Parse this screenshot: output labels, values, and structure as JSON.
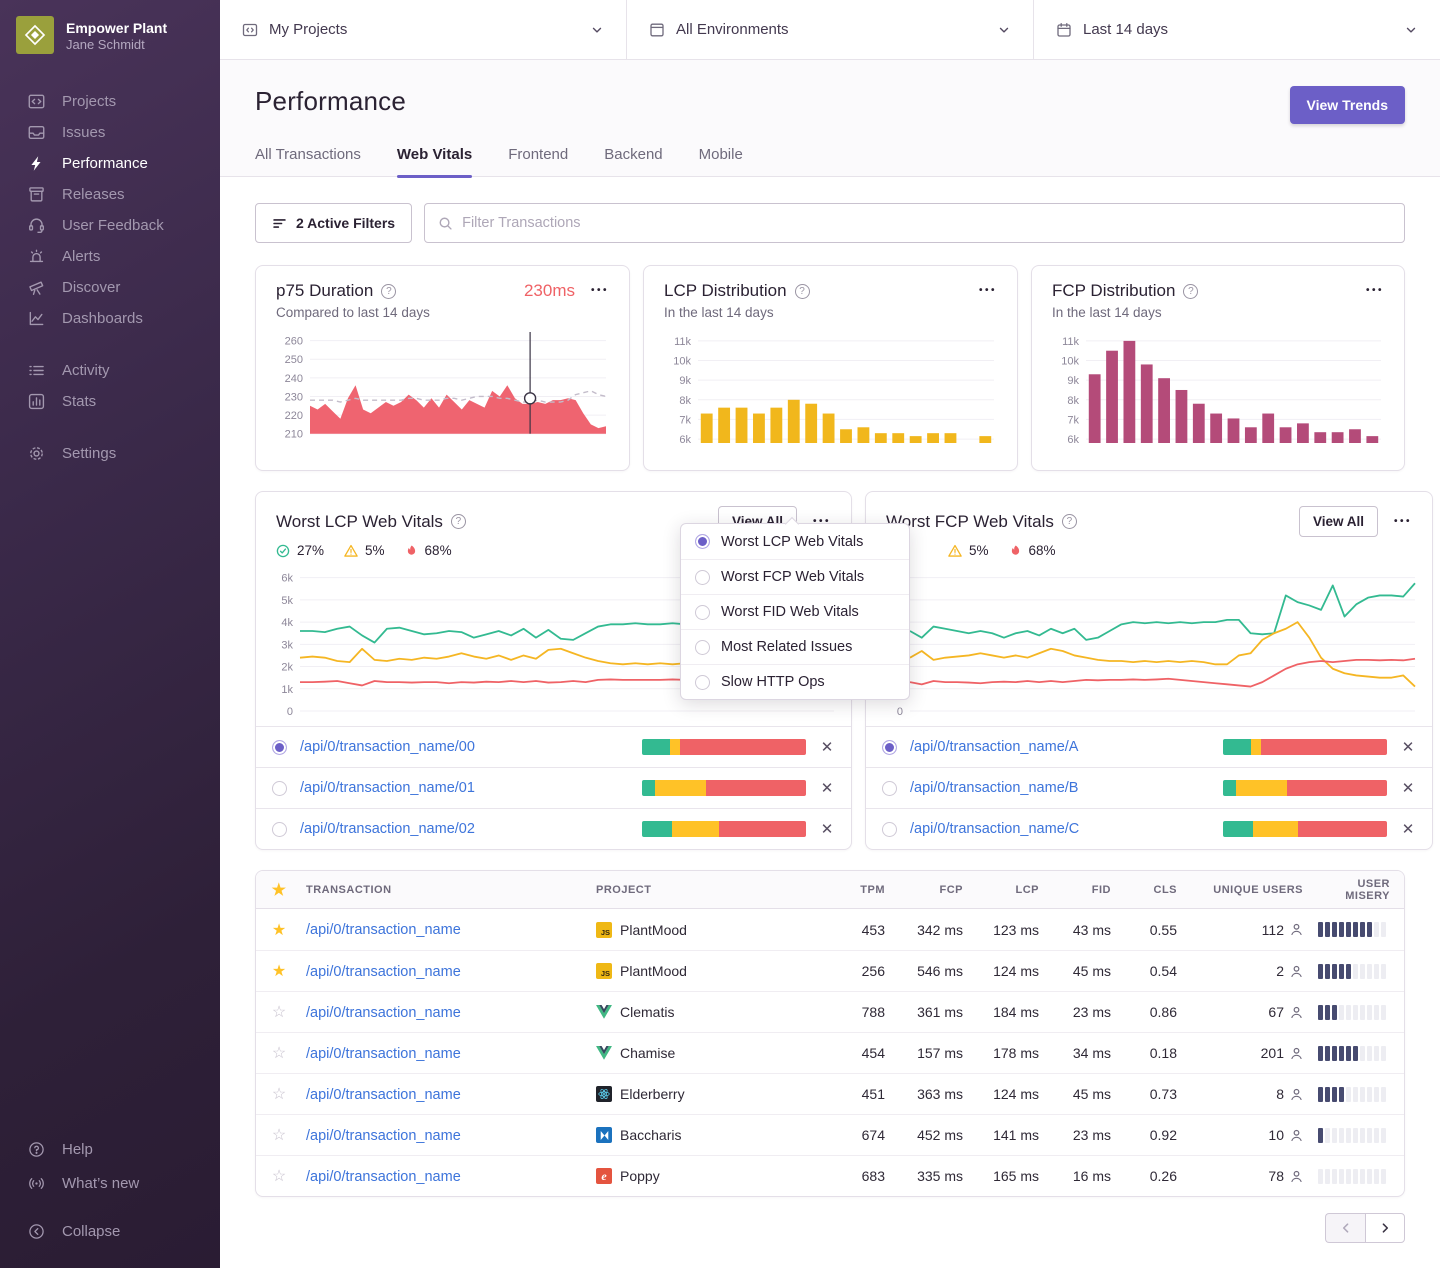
{
  "colors": {
    "accent": "#6C5FC7",
    "red": "#EF6266",
    "green": "#33BA91",
    "yellow": "#F5B623",
    "lcp_bar": "#F1B71C",
    "fcp_bar": "#B44B79",
    "link": "#3D74DB",
    "misery": "#474B70"
  },
  "sidebar": {
    "org": "Empower Plant",
    "user": "Jane Schmidt",
    "items": [
      {
        "label": "Projects"
      },
      {
        "label": "Issues"
      },
      {
        "label": "Performance",
        "active": true
      },
      {
        "label": "Releases"
      },
      {
        "label": "User Feedback"
      },
      {
        "label": "Alerts"
      },
      {
        "label": "Discover"
      },
      {
        "label": "Dashboards"
      }
    ],
    "items_secondary": [
      {
        "label": "Activity"
      },
      {
        "label": "Stats"
      }
    ],
    "items_tertiary": [
      {
        "label": "Settings"
      }
    ],
    "footer_items": [
      {
        "label": "Help"
      },
      {
        "label": "What’s new"
      }
    ],
    "collapse_label": "Collapse"
  },
  "topbar": {
    "projects": "My Projects",
    "environments": "All Environments",
    "daterange": "Last 14 days"
  },
  "page": {
    "title": "Performance",
    "view_trends": "View Trends"
  },
  "tabs": [
    {
      "label": "All Transactions"
    },
    {
      "label": "Web Vitals",
      "active": true
    },
    {
      "label": "Frontend"
    },
    {
      "label": "Backend"
    },
    {
      "label": "Mobile"
    }
  ],
  "filter_bar": {
    "active_filters": "2 Active Filters",
    "placeholder": "Filter Transactions"
  },
  "cards": {
    "p75": {
      "title": "p75 Duration",
      "value": "230ms",
      "subtitle": "Compared to last 14 days"
    },
    "lcp": {
      "title": "LCP Distribution",
      "subtitle": "In the last 14 days"
    },
    "fcp": {
      "title": "FCP Distribution",
      "subtitle": "In the last 14 days"
    }
  },
  "menu": {
    "items": [
      "Worst LCP Web Vitals",
      "Worst FCP Web Vitals",
      "Worst FID Web Vitals",
      "Most Related Issues",
      "Slow HTTP Ops"
    ],
    "selected_index": 0
  },
  "vitals": {
    "left": {
      "title": "Worst LCP Web Vitals",
      "view_all": "View All",
      "good": "27%",
      "meh": "5%",
      "poor": "68%",
      "transactions": [
        {
          "name": "/api/0/transaction_name/00",
          "selected": true,
          "segments": [
            17,
            6,
            77
          ]
        },
        {
          "name": "/api/0/transaction_name/01",
          "selected": false,
          "segments": [
            8,
            31,
            61
          ]
        },
        {
          "name": "/api/0/transaction_name/02",
          "selected": false,
          "segments": [
            18,
            29,
            53
          ]
        }
      ]
    },
    "right": {
      "title": "Worst FCP Web Vitals",
      "view_all": "View All",
      "meh": "5%",
      "poor": "68%",
      "transactions": [
        {
          "name": "/api/0/transaction_name/A",
          "selected": true,
          "segments": [
            17,
            6,
            77
          ]
        },
        {
          "name": "/api/0/transaction_name/B",
          "selected": false,
          "segments": [
            8,
            31,
            61
          ]
        },
        {
          "name": "/api/0/transaction_name/C",
          "selected": false,
          "segments": [
            18,
            28,
            54
          ]
        }
      ]
    }
  },
  "table": {
    "columns": [
      "TRANSACTION",
      "PROJECT",
      "TPM",
      "FCP",
      "LCP",
      "FID",
      "CLS",
      "UNIQUE USERS",
      "USER MISERY"
    ],
    "misery_total": 10,
    "rows": [
      {
        "starred": true,
        "transaction": "/api/0/transaction_name",
        "project": "PlantMood",
        "platform": "javascript",
        "tpm": "453",
        "fcp": "342 ms",
        "lcp": "123 ms",
        "fid": "43 ms",
        "cls": "0.55",
        "users": "112",
        "misery": 8
      },
      {
        "starred": true,
        "transaction": "/api/0/transaction_name",
        "project": "PlantMood",
        "platform": "javascript",
        "tpm": "256",
        "fcp": "546 ms",
        "lcp": "124 ms",
        "fid": "45 ms",
        "cls": "0.54",
        "users": "2",
        "misery": 5
      },
      {
        "starred": false,
        "transaction": "/api/0/transaction_name",
        "project": "Clematis",
        "platform": "vue",
        "tpm": "788",
        "fcp": "361 ms",
        "lcp": "184 ms",
        "fid": "23 ms",
        "cls": "0.86",
        "users": "67",
        "misery": 3
      },
      {
        "starred": false,
        "transaction": "/api/0/transaction_name",
        "project": "Chamise",
        "platform": "vue",
        "tpm": "454",
        "fcp": "157 ms",
        "lcp": "178 ms",
        "fid": "34 ms",
        "cls": "0.18",
        "users": "201",
        "misery": 6
      },
      {
        "starred": false,
        "transaction": "/api/0/transaction_name",
        "project": "Elderberry",
        "platform": "react",
        "tpm": "451",
        "fcp": "363 ms",
        "lcp": "124 ms",
        "fid": "45 ms",
        "cls": "0.73",
        "users": "8",
        "misery": 4
      },
      {
        "starred": false,
        "transaction": "/api/0/transaction_name",
        "project": "Baccharis",
        "platform": "baccharis",
        "tpm": "674",
        "fcp": "452 ms",
        "lcp": "141 ms",
        "fid": "23 ms",
        "cls": "0.92",
        "users": "10",
        "misery": 1
      },
      {
        "starred": false,
        "transaction": "/api/0/transaction_name",
        "project": "Poppy",
        "platform": "ember",
        "tpm": "683",
        "fcp": "335 ms",
        "lcp": "165 ms",
        "fid": "16 ms",
        "cls": "0.26",
        "users": "78",
        "misery": 0
      }
    ]
  },
  "chart_data": [
    {
      "id": "p75",
      "type": "area",
      "title": "p75 Duration",
      "unit": "ms",
      "ylim": [
        205,
        263
      ],
      "yticks": [
        "260",
        "250",
        "240",
        "230",
        "220",
        "210"
      ],
      "ytick_values": [
        260,
        250,
        240,
        230,
        220,
        210
      ],
      "baseline": 210,
      "marker_index": 29,
      "marker_value": 229,
      "values": [
        225,
        223,
        226,
        222,
        218,
        229,
        236,
        223,
        221,
        224,
        227,
        225,
        227,
        231,
        228,
        224,
        229,
        224,
        231,
        227,
        223,
        228,
        226,
        224,
        233,
        230,
        236,
        229,
        226,
        226,
        227,
        226,
        228,
        228,
        229,
        228,
        221,
        215,
        213,
        214
      ],
      "trend": [
        228,
        228,
        228,
        228,
        227,
        228,
        229,
        228,
        228,
        228,
        228,
        228,
        228,
        229,
        229,
        228,
        228,
        228,
        229,
        229,
        228,
        229,
        230,
        230,
        230,
        229,
        229,
        228,
        227,
        227,
        228,
        227,
        227,
        227,
        228,
        231,
        232,
        233,
        231,
        230
      ]
    },
    {
      "id": "lcp_distribution",
      "type": "bar",
      "title": "LCP Distribution",
      "color": "#F1B71C",
      "ylim": [
        5800,
        11300
      ],
      "yticks": [
        "11k",
        "10k",
        "9k",
        "8k",
        "7k",
        "6k"
      ],
      "ytick_values": [
        11000,
        10000,
        9000,
        8000,
        7000,
        6000
      ],
      "values": [
        7300,
        7600,
        7600,
        7300,
        7600,
        8000,
        7800,
        7300,
        6500,
        6600,
        6300,
        6300,
        6150,
        6300,
        6300,
        null,
        6150
      ]
    },
    {
      "id": "fcp_distribution",
      "type": "bar",
      "title": "FCP Distribution",
      "color": "#B44B79",
      "ylim": [
        5800,
        11300
      ],
      "yticks": [
        "11k",
        "10k",
        "9k",
        "8k",
        "7k",
        "6k"
      ],
      "ytick_values": [
        11000,
        10000,
        9000,
        8000,
        7000,
        6000
      ],
      "values": [
        9300,
        10500,
        11000,
        9800,
        9100,
        8500,
        7800,
        7300,
        7050,
        6600,
        7300,
        6600,
        6800,
        6350,
        6350,
        6500,
        6150
      ]
    },
    {
      "id": "worst_lcp",
      "type": "line",
      "title": "Worst LCP Web Vitals",
      "ylim": [
        0,
        6300
      ],
      "yticks": [
        "6k",
        "5k",
        "4k",
        "3k",
        "2k",
        "1k",
        "0"
      ],
      "ytick_values": [
        6000,
        5000,
        4000,
        3000,
        2000,
        1000,
        0
      ],
      "series": [
        {
          "name": "good",
          "color": "#33BA91",
          "values": [
            3600,
            3600,
            3550,
            3700,
            3800,
            3400,
            3080,
            3700,
            3750,
            3600,
            3450,
            3500,
            3600,
            3550,
            3300,
            3450,
            3600,
            3400,
            3700,
            3300,
            3650,
            3250,
            3200,
            3500,
            3800,
            3900,
            3900,
            3950,
            3900,
            3900,
            3950,
            3900,
            3900,
            3950,
            3900,
            4100,
            4100,
            4150,
            3500,
            3450,
            3500,
            5150,
            4900,
            4650
          ]
        },
        {
          "name": "meh",
          "color": "#F5B623",
          "values": [
            2400,
            2450,
            2400,
            2250,
            2200,
            2800,
            2300,
            2250,
            2350,
            2300,
            2400,
            2350,
            2450,
            2600,
            2450,
            2350,
            2500,
            2300,
            2500,
            2350,
            2750,
            2800,
            2600,
            2400,
            2250,
            2150,
            2100,
            2150,
            2100,
            2150,
            2100,
            2150,
            2100,
            2150,
            2100,
            2150,
            1950,
            1950,
            2000,
            2500,
            2650,
            3000,
            3300,
            3600
          ]
        },
        {
          "name": "poor",
          "color": "#EF6266",
          "values": [
            1300,
            1300,
            1320,
            1350,
            1250,
            1150,
            1350,
            1300,
            1300,
            1280,
            1300,
            1300,
            1250,
            1300,
            1280,
            1320,
            1300,
            1350,
            1300,
            1350,
            1280,
            1300,
            1350,
            1300,
            1400,
            1420,
            1400,
            1400,
            1400,
            1400,
            1420,
            1400,
            1420,
            1450,
            1450,
            1400,
            1380,
            1300,
            1200,
            1100,
            1050,
            1000,
            980,
            950
          ]
        }
      ]
    },
    {
      "id": "worst_fcp",
      "type": "line",
      "title": "Worst FCP Web Vitals",
      "ylim": [
        0,
        6300
      ],
      "yticks": [
        "6k",
        "5k",
        "4k",
        "3k",
        "2k",
        "1k",
        "0"
      ],
      "ytick_values": [
        6000,
        5000,
        4000,
        3000,
        2000,
        1000,
        0
      ],
      "series": [
        {
          "name": "good",
          "color": "#33BA91",
          "values": [
            3600,
            3300,
            3800,
            3700,
            3600,
            3500,
            3600,
            3500,
            3300,
            3500,
            3600,
            3400,
            3700,
            3500,
            3700,
            3200,
            3300,
            3600,
            3900,
            4000,
            3950,
            4000,
            3950,
            4000,
            3950,
            4000,
            4000,
            4100,
            4100,
            3500,
            3450,
            3500,
            5200,
            4900,
            4750,
            4550,
            5650,
            4250,
            4800,
            5100,
            5200,
            5200,
            5150,
            5750
          ]
        },
        {
          "name": "meh",
          "color": "#F5B623",
          "values": [
            2400,
            2700,
            2300,
            2400,
            2450,
            2500,
            2600,
            2500,
            2400,
            2500,
            2400,
            2600,
            2800,
            2700,
            2500,
            2400,
            2300,
            2250,
            2250,
            2200,
            2250,
            2200,
            2250,
            2200,
            2250,
            2200,
            2100,
            2100,
            2500,
            2600,
            3200,
            3500,
            3700,
            4000,
            3300,
            2400,
            1900,
            1700,
            1600,
            1550,
            1500,
            1500,
            1600,
            1100
          ]
        },
        {
          "name": "poor",
          "color": "#EF6266",
          "values": [
            1300,
            1200,
            1350,
            1300,
            1300,
            1280,
            1250,
            1300,
            1320,
            1300,
            1350,
            1300,
            1350,
            1300,
            1350,
            1400,
            1380,
            1400,
            1400,
            1420,
            1400,
            1420,
            1450,
            1400,
            1350,
            1300,
            1250,
            1200,
            1150,
            1100,
            1300,
            1600,
            1900,
            2100,
            2200,
            2250,
            2200,
            2250,
            2300,
            2300,
            2280,
            2300,
            2280,
            2350
          ]
        }
      ]
    }
  ]
}
